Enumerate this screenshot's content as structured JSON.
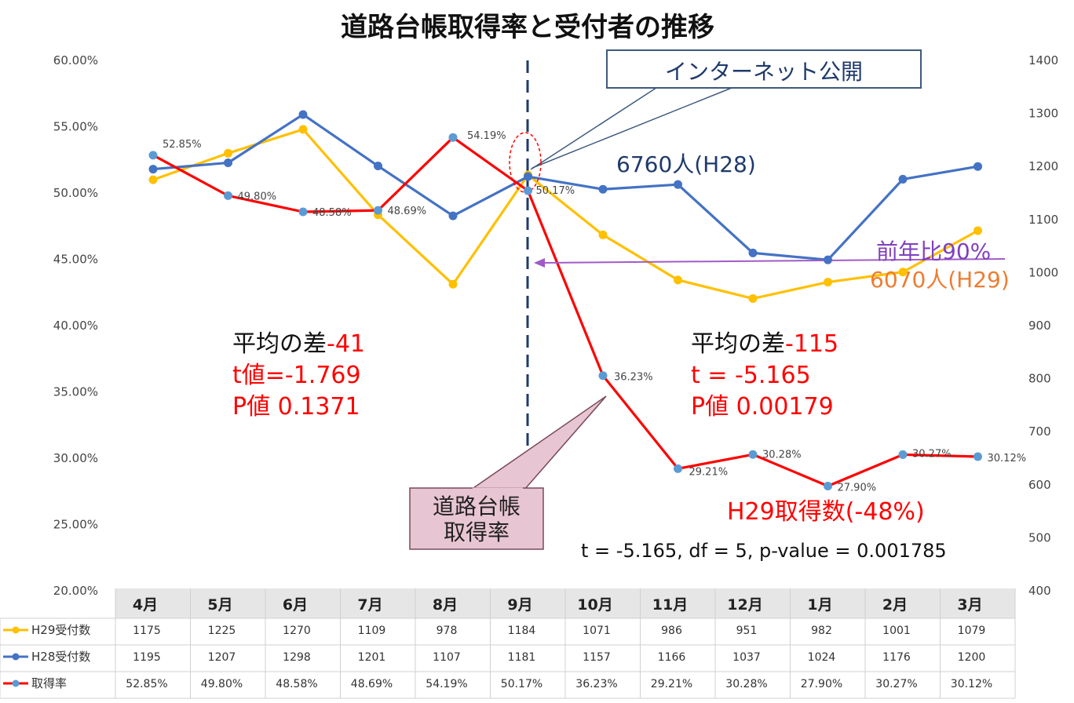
{
  "chart_data": {
    "type": "line",
    "title": "道路台帳取得率と受付者の推移",
    "categories": [
      "4月",
      "5月",
      "6月",
      "7月",
      "8月",
      "9月",
      "10月",
      "11月",
      "12月",
      "1月",
      "2月",
      "3月"
    ],
    "y_left": {
      "ticks": [
        "60.00%",
        "55.00%",
        "50.00%",
        "45.00%",
        "40.00%",
        "35.00%",
        "30.00%",
        "25.00%",
        "20.00%"
      ],
      "range": [
        20,
        60
      ]
    },
    "y_right": {
      "ticks": [
        "1400",
        "1300",
        "1200",
        "1100",
        "1000",
        "900",
        "800",
        "700",
        "600",
        "500",
        "400"
      ],
      "range": [
        400,
        1400
      ]
    },
    "series": [
      {
        "name": "H29受付数",
        "axis": "right",
        "color": "#FFC000",
        "values": [
          1175,
          1225,
          1270,
          1109,
          978,
          1184,
          1071,
          986,
          951,
          982,
          1001,
          1079
        ],
        "display": [
          "1175",
          "1225",
          "1270",
          "1109",
          "978",
          "1184",
          "1071",
          "986",
          "951",
          "982",
          "1001",
          "1079"
        ]
      },
      {
        "name": "H28受付数",
        "axis": "right",
        "color": "#4472C4",
        "values": [
          1195,
          1207,
          1298,
          1201,
          1107,
          1181,
          1157,
          1166,
          1037,
          1024,
          1176,
          1200
        ],
        "display": [
          "1195",
          "1207",
          "1298",
          "1201",
          "1107",
          "1181",
          "1157",
          "1166",
          "1037",
          "1024",
          "1176",
          "1200"
        ]
      },
      {
        "name": "取得率",
        "axis": "left",
        "color": "#FF0000",
        "marker_color": "#5B9BD5",
        "values": [
          52.85,
          49.8,
          48.58,
          48.69,
          54.19,
          50.17,
          36.23,
          29.21,
          30.28,
          27.9,
          30.27,
          30.12
        ],
        "display": [
          "52.85%",
          "49.80%",
          "48.58%",
          "48.69%",
          "54.19%",
          "50.17%",
          "36.23%",
          "29.21%",
          "30.28%",
          "27.90%",
          "30.27%",
          "30.12%"
        ]
      }
    ],
    "legend": "table-bottom",
    "grid": false
  },
  "annotations": {
    "internet_box": "インターネット公開",
    "h28_total": "6760人(H28)",
    "yoy": "前年比90%",
    "h29_total": "6070人(H29)",
    "left_stats": {
      "line1_a": "平均の差",
      "line1_b": "-41",
      "line2": "t値=-1.769",
      "line3": "P値 0.1371"
    },
    "right_stats": {
      "line1_a": "平均の差",
      "line1_b": "-115",
      "line2": "t = -5.165",
      "line3": "P値 0.00179"
    },
    "callout": {
      "line1": "道路台帳",
      "line2": "取得率"
    },
    "h29_drop": "H29取得数(-48%)",
    "ttest": "t = -5.165, df = 5, p-value = 0.001785"
  },
  "colors": {
    "navy": "#1F3A6B",
    "red": "#FF0000",
    "purple": "#7F3FBF",
    "orange": "#ED7D31",
    "callout_fill": "#E8C5D2"
  }
}
